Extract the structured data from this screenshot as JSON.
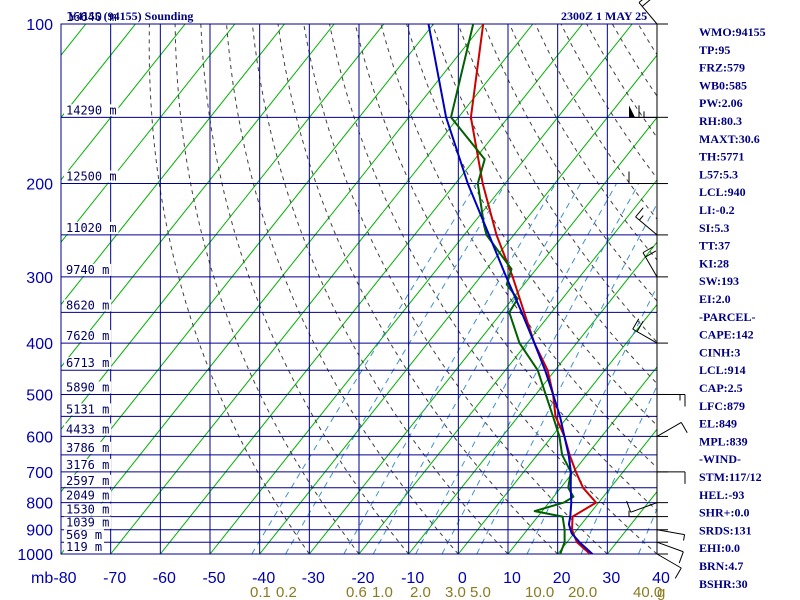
{
  "header": {
    "station_label": "Y4155 (94155) Sounding",
    "time_label": "2300Z  1 MAY 25"
  },
  "axis": {
    "y_unit_label": "mb",
    "pressure_levels": [
      100,
      200,
      300,
      400,
      500,
      600,
      700,
      800,
      900,
      1000
    ],
    "height_levels": [
      {
        "p": 100,
        "label": "16640 m"
      },
      {
        "p": 150,
        "label": "14290 m"
      },
      {
        "p": 200,
        "label": "12500 m"
      },
      {
        "p": 250,
        "label": "11020 m"
      },
      {
        "p": 300,
        "label": "9740 m"
      },
      {
        "p": 350,
        "label": "8620 m"
      },
      {
        "p": 400,
        "label": "7620 m"
      },
      {
        "p": 450,
        "label": "6713 m"
      },
      {
        "p": 500,
        "label": "5890 m"
      },
      {
        "p": 550,
        "label": "5131 m"
      },
      {
        "p": 600,
        "label": "4433 m"
      },
      {
        "p": 650,
        "label": "3786 m"
      },
      {
        "p": 700,
        "label": "3176 m"
      },
      {
        "p": 750,
        "label": "2597 m"
      },
      {
        "p": 800,
        "label": "2049 m"
      },
      {
        "p": 850,
        "label": "1530 m"
      },
      {
        "p": 900,
        "label": "1039 m"
      },
      {
        "p": 950,
        "label": "569 m"
      },
      {
        "p": 1000,
        "label": "119 m"
      }
    ],
    "temperature_ticks": [
      "-80",
      "-70",
      "-60",
      "-50",
      "-40",
      "-30",
      "-20",
      "-10",
      "0",
      "10",
      "20",
      "30",
      "40"
    ],
    "mixing_ratio_labels": [
      "0.1",
      "0.2",
      "0.6",
      "1.0",
      "2.0",
      "3.0",
      "5.0",
      "10.0",
      "20.0",
      "40.0"
    ],
    "mixing_ratio_unit": "g"
  },
  "chart_data": {
    "type": "line",
    "title": "Y4155 (94155) Sounding  2300Z  1 MAY 25",
    "xlabel": "",
    "ylabel": "mb",
    "xlim": [
      -80,
      40
    ],
    "ylim": [
      1000,
      100
    ],
    "y_scale": "log",
    "grid": true,
    "series": [
      {
        "name": "",
        "role": "temperature",
        "color": "#cc0000",
        "p": [
          1000,
          950,
          925,
          900,
          850,
          800,
          750,
          700,
          650,
          600,
          550,
          500,
          450,
          400,
          350,
          300,
          250,
          200,
          150,
          100
        ],
        "t": [
          26.5,
          22,
          20.5,
          19,
          17,
          19.5,
          14.5,
          10.5,
          6.5,
          2.5,
          -2.5,
          -6.5,
          -11.5,
          -18.5,
          -25.5,
          -33.5,
          -43.5,
          -54.5,
          -67.5,
          -80
        ]
      },
      {
        "name": "",
        "role": "dewpoint",
        "color": "#006000",
        "p": [
          1000,
          950,
          900,
          850,
          830,
          800,
          780,
          750,
          700,
          650,
          600,
          550,
          500,
          450,
          400,
          350,
          330,
          310,
          290,
          250,
          240,
          200,
          180,
          150,
          100
        ],
        "t": [
          20.5,
          19.5,
          17.5,
          15,
          8.5,
          13,
          14,
          11.5,
          9.5,
          5,
          1.5,
          -3,
          -8,
          -13.5,
          -21.5,
          -28.5,
          -29,
          -33.5,
          -35,
          -45.5,
          -47.5,
          -55.5,
          -58,
          -71.5,
          -82
        ]
      },
      {
        "name": "",
        "role": "parcel",
        "color": "#0000c0",
        "p": [
          1000,
          950,
          914,
          879,
          849,
          800,
          750,
          700,
          650,
          600,
          550,
          500,
          450,
          400,
          350,
          300,
          250,
          200,
          150,
          100
        ],
        "t": [
          27,
          22.5,
          19.5,
          17.5,
          16.5,
          14.5,
          12,
          9.5,
          6.3,
          2.5,
          -1.6,
          -6.5,
          -12,
          -18.5,
          -26,
          -34.8,
          -45,
          -57.5,
          -72.5,
          -91
        ]
      }
    ],
    "wind_barbs": [
      {
        "p": 1000,
        "dir": 120,
        "spd": 10
      },
      {
        "p": 950,
        "dir": 110,
        "spd": 10
      },
      {
        "p": 900,
        "dir": 100,
        "spd": 5
      },
      {
        "p": 850,
        "dir": 270,
        "spd": 5
      },
      {
        "p": 800,
        "dir": 250,
        "spd": 10
      },
      {
        "p": 700,
        "dir": 90,
        "spd": 10
      },
      {
        "p": 600,
        "dir": 60,
        "spd": 10
      },
      {
        "p": 500,
        "dir": 90,
        "spd": 15
      },
      {
        "p": 400,
        "dir": 300,
        "spd": 20
      },
      {
        "p": 300,
        "dir": 330,
        "spd": 20
      },
      {
        "p": 250,
        "dir": 310,
        "spd": 15
      },
      {
        "p": 200,
        "dir": 270,
        "spd": 10
      },
      {
        "p": 150,
        "dir": 270,
        "spd": 65
      },
      {
        "p": 100,
        "dir": 320,
        "spd": 20
      }
    ]
  },
  "indices": [
    "WMO:94155",
    "TP:95",
    "FRZ:579",
    "WB0:585",
    "PW:2.06",
    "RH:80.3",
    "MAXT:30.6",
    "TH:5771",
    "L57:5.3",
    "LCL:940",
    "LI:-0.2",
    "SI:5.3",
    "TT:37",
    "KI:28",
    "SW:193",
    "EI:2.0",
    "-PARCEL-",
    "CAPE:142",
    "CINH:3",
    "LCL:914",
    "CAP:2.5",
    "LFC:879",
    "EL:849",
    "MPL:839",
    "-WIND-",
    "STM:117/12",
    "HEL:-93",
    "SHR+:0.0",
    "SRDS:131",
    "EHI:0.0",
    "BRN:4.7",
    "BSHR:30"
  ],
  "colors": {
    "grid": "#000090",
    "isotherm": "#00b000",
    "dry_adiabat": "#404040",
    "mixing_ratio": "#4090d0",
    "temperature": "#cc0000",
    "dewpoint": "#006000",
    "parcel": "#0000c0",
    "wind": "#000000"
  }
}
